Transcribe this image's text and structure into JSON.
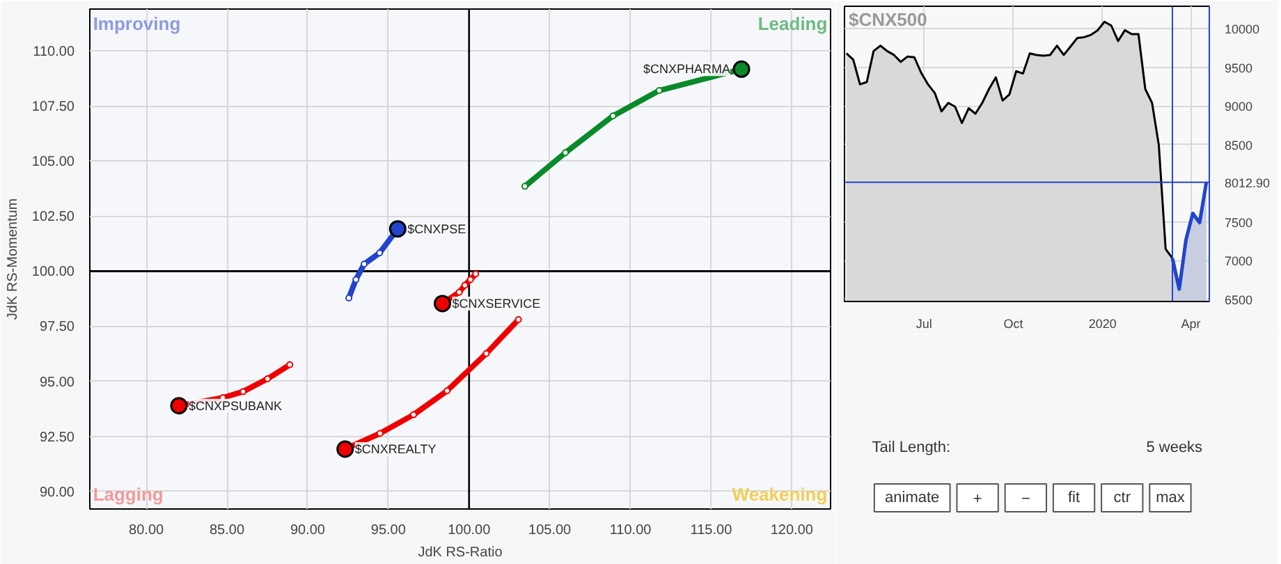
{
  "chart_data": [
    {
      "type": "line",
      "xlabel": "JdK RS-Ratio",
      "ylabel": "JdK RS-Momentum",
      "marker": "circle",
      "grid": true,
      "annotations": [
        "Improving",
        "Leading",
        "Lagging",
        "Weakening"
      ],
      "xlim": [
        76.5,
        122.4
      ],
      "ylim": [
        89.2,
        111.9
      ],
      "xticks": [
        {
          "value": 80,
          "label": "80.00"
        },
        {
          "value": 85,
          "label": "85.00"
        },
        {
          "value": 90,
          "label": "90.00"
        },
        {
          "value": 95,
          "label": "95.00"
        },
        {
          "value": 100,
          "label": "100.00"
        },
        {
          "value": 105,
          "label": "105.00"
        },
        {
          "value": 110,
          "label": "110.00"
        },
        {
          "value": 115,
          "label": "115.00"
        },
        {
          "value": 120,
          "label": "120.00"
        }
      ],
      "yticks": [
        {
          "value": 90,
          "label": "90.00"
        },
        {
          "value": 92.5,
          "label": "92.50"
        },
        {
          "value": 95,
          "label": "95.00"
        },
        {
          "value": 97.5,
          "label": "97.50"
        },
        {
          "value": 100,
          "label": "100.00"
        },
        {
          "value": 102.5,
          "label": "102.50"
        },
        {
          "value": 105,
          "label": "105.00"
        },
        {
          "value": 107.5,
          "label": "107.50"
        },
        {
          "value": 110,
          "label": "110.00"
        }
      ],
      "ref_lines": [
        {
          "axis": "x",
          "value": 100,
          "color": "#000000"
        },
        {
          "axis": "y",
          "value": 100,
          "color": "#000000"
        }
      ],
      "series": [
        {
          "name": "$CNXPHARMA",
          "color": "#0a8a2a",
          "x": [
            103.46,
            105.97,
            108.92,
            111.78,
            116.88
          ],
          "values": [
            103.85,
            105.38,
            107.05,
            108.2,
            109.17
          ]
        },
        {
          "name": "$CNXPSE",
          "color": "#2244cc",
          "x": [
            92.55,
            92.99,
            93.5,
            94.46,
            95.58
          ],
          "values": [
            98.78,
            99.62,
            100.32,
            100.83,
            101.92
          ]
        },
        {
          "name": "$CNXSERVICE",
          "color": "#ee0000",
          "x": [
            100.41,
            100.09,
            99.74,
            99.39,
            98.35
          ],
          "values": [
            99.87,
            99.62,
            99.36,
            99.04,
            98.53
          ]
        },
        {
          "name": "$CNXPSUBANK",
          "color": "#ee0000",
          "x": [
            88.89,
            87.51,
            86.0,
            84.74,
            82.02
          ],
          "values": [
            95.75,
            95.11,
            94.53,
            94.25,
            93.89
          ]
        },
        {
          "name": "$CNXREALTY",
          "color": "#ee0000",
          "x": [
            103.06,
            101.07,
            98.64,
            96.56,
            94.48,
            92.32
          ],
          "values": [
            97.8,
            96.26,
            94.57,
            93.48,
            92.63,
            91.92
          ]
        }
      ]
    },
    {
      "type": "area",
      "title": "$CNX500",
      "grid": true,
      "xlim": [
        "2019-04-10",
        "2020-04-20"
      ],
      "ylim": [
        6470,
        10290
      ],
      "xticks": [
        {
          "value": "2019-07-01",
          "label": "Jul"
        },
        {
          "value": "2019-10-01",
          "label": "Oct"
        },
        {
          "value": "2020-01-01",
          "label": "2020"
        },
        {
          "value": "2020-04-01",
          "label": "Apr"
        }
      ],
      "yticks": [
        6500,
        7000,
        7500,
        8500,
        9000,
        9500,
        10000
      ],
      "ref_lines": [
        {
          "axis": "y",
          "value": 8012.9,
          "label": "8012.90",
          "color": "#2244cc"
        },
        {
          "axis": "x",
          "value": "2020-03-13",
          "color": "#2244cc"
        }
      ],
      "series": [
        {
          "color": "#000000",
          "x": [
            "2019-04-12",
            "2019-04-19",
            "2019-04-26",
            "2019-05-03",
            "2019-05-10",
            "2019-05-17",
            "2019-05-24",
            "2019-05-31",
            "2019-06-07",
            "2019-06-14",
            "2019-06-21",
            "2019-06-28",
            "2019-07-05",
            "2019-07-12",
            "2019-07-19",
            "2019-07-26",
            "2019-08-02",
            "2019-08-09",
            "2019-08-16",
            "2019-08-23",
            "2019-08-30",
            "2019-09-06",
            "2019-09-13",
            "2019-09-20",
            "2019-09-27",
            "2019-10-04",
            "2019-10-11",
            "2019-10-18",
            "2019-10-25",
            "2019-11-01",
            "2019-11-08",
            "2019-11-15",
            "2019-11-22",
            "2019-11-29",
            "2019-12-06",
            "2019-12-13",
            "2019-12-20",
            "2019-12-27",
            "2020-01-03",
            "2020-01-10",
            "2020-01-17",
            "2020-01-24",
            "2020-01-31",
            "2020-02-07",
            "2020-02-14",
            "2020-02-21",
            "2020-02-28",
            "2020-03-06",
            "2020-03-13"
          ],
          "values": [
            9680,
            9600,
            9280,
            9310,
            9710,
            9780,
            9710,
            9660,
            9570,
            9640,
            9630,
            9430,
            9280,
            9170,
            8930,
            9040,
            8990,
            8780,
            8970,
            8900,
            9040,
            9220,
            9370,
            9070,
            9150,
            9450,
            9420,
            9680,
            9660,
            9650,
            9660,
            9780,
            9660,
            9770,
            9880,
            9890,
            9920,
            9980,
            10090,
            10040,
            9840,
            9980,
            9930,
            9930,
            9220,
            9040,
            8490,
            7150,
            7030
          ]
        },
        {
          "color": "#2244cc",
          "x": [
            "2020-03-13",
            "2020-03-20",
            "2020-03-27",
            "2020-04-03",
            "2020-04-10",
            "2020-04-17"
          ],
          "values": [
            7030,
            6630,
            7270,
            7610,
            7490,
            8012.9
          ]
        }
      ]
    },
    {
      "type": "other",
      "annotations": [
        "Tail Length:",
        "5 weeks",
        "animate",
        "+",
        "−",
        "fit",
        "ctr",
        "max"
      ]
    }
  ]
}
